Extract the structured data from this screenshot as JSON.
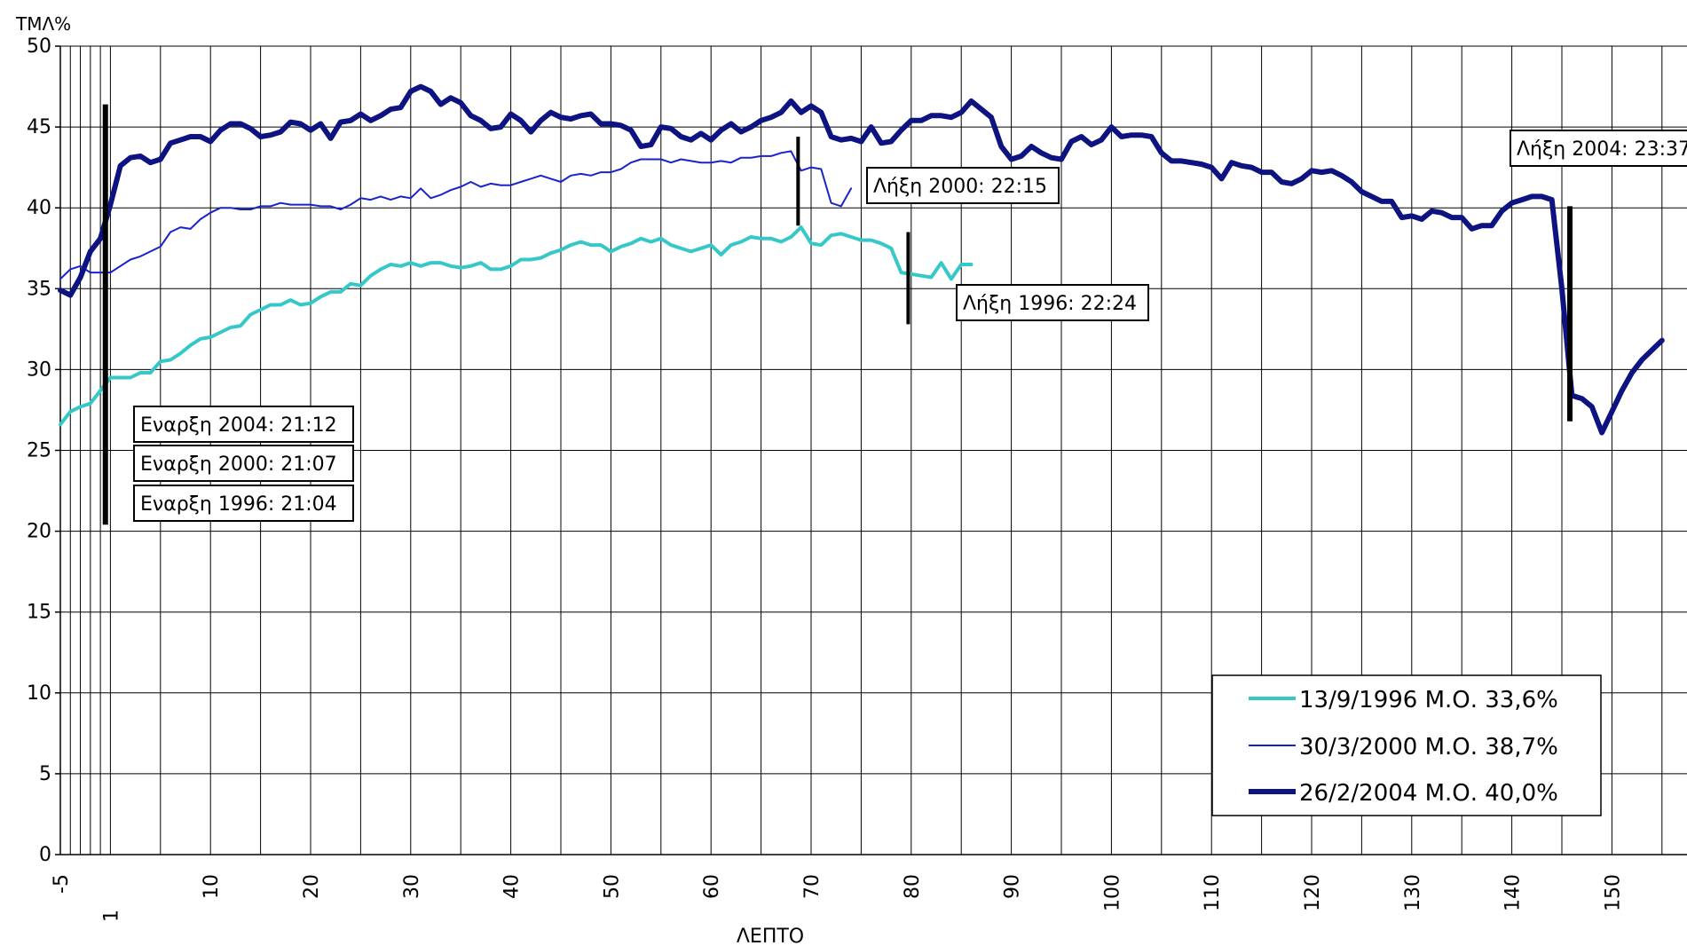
{
  "chart_data": {
    "type": "line",
    "title": "",
    "ylabel": "ΤΜΛ%",
    "xlabel": "ΛΕΠΤΟ",
    "ylim": [
      0,
      50
    ],
    "yticks": [
      "0",
      "5",
      "10",
      "15",
      "20",
      "25",
      "30",
      "35",
      "40",
      "45",
      "50"
    ],
    "xticks": [
      "-5",
      "1",
      "10",
      "20",
      "30",
      "40",
      "50",
      "60",
      "70",
      "80",
      "90",
      "100",
      "110",
      "120",
      "130",
      "140",
      "150"
    ],
    "grid": true,
    "legend_position": "bottom-right",
    "series": [
      {
        "name": "13/9/1996 Μ.Ο. 33,6%",
        "color": "#36c8c8",
        "x": [
          -5,
          -4,
          -3,
          -2,
          0,
          1,
          2,
          3,
          4,
          5,
          6,
          7,
          8,
          9,
          10,
          11,
          12,
          13,
          14,
          15,
          16,
          17,
          18,
          19,
          20,
          21,
          22,
          23,
          24,
          25,
          26,
          27,
          28,
          29,
          30,
          31,
          32,
          33,
          34,
          35,
          36,
          37,
          38,
          39,
          40,
          41,
          42,
          43,
          44,
          45,
          46,
          47,
          48,
          49,
          50,
          51,
          52,
          53,
          54,
          55,
          56,
          57,
          58,
          59,
          60,
          61,
          62,
          63,
          64,
          65,
          66,
          67,
          68,
          69,
          70,
          71,
          72,
          73,
          74,
          75,
          76,
          77,
          78,
          79,
          80,
          81,
          82,
          83,
          84,
          85,
          86
        ],
        "values": [
          26.6,
          27.4,
          27.7,
          27.9,
          29.5,
          29.5,
          29.5,
          29.8,
          29.8,
          30.5,
          30.6,
          31.0,
          31.5,
          31.9,
          32.0,
          32.3,
          32.6,
          32.7,
          33.4,
          33.7,
          34.0,
          34.0,
          34.3,
          34.0,
          34.1,
          34.5,
          34.8,
          34.8,
          35.3,
          35.2,
          35.8,
          36.2,
          36.5,
          36.4,
          36.6,
          36.4,
          36.6,
          36.6,
          36.4,
          36.3,
          36.4,
          36.6,
          36.2,
          36.2,
          36.4,
          36.8,
          36.8,
          36.9,
          37.2,
          37.4,
          37.7,
          37.9,
          37.7,
          37.7,
          37.3,
          37.6,
          37.8,
          38.1,
          37.9,
          38.1,
          37.7,
          37.5,
          37.3,
          37.5,
          37.7,
          37.1,
          37.7,
          37.9,
          38.2,
          38.1,
          38.1,
          37.9,
          38.2,
          38.8,
          37.8,
          37.7,
          38.3,
          38.4,
          38.2,
          38.0,
          38.0,
          37.8,
          37.5,
          36.0,
          35.9,
          35.8,
          35.7,
          36.6,
          35.6,
          36.5,
          36.5
        ],
        "line_width": 4
      },
      {
        "name": "30/3/2000 Μ.Ο. 38,7%",
        "color": "#1a22cc",
        "x": [
          -5,
          -4,
          -3,
          -2,
          0,
          1,
          2,
          3,
          4,
          5,
          6,
          7,
          8,
          9,
          10,
          11,
          12,
          13,
          14,
          15,
          16,
          17,
          18,
          19,
          20,
          21,
          22,
          23,
          24,
          25,
          26,
          27,
          28,
          29,
          30,
          31,
          32,
          33,
          34,
          35,
          36,
          37,
          38,
          39,
          40,
          41,
          42,
          43,
          44,
          45,
          46,
          47,
          48,
          49,
          50,
          51,
          52,
          53,
          54,
          55,
          56,
          57,
          58,
          59,
          60,
          61,
          62,
          63,
          64,
          65,
          66,
          67,
          68,
          69,
          70,
          71,
          72,
          73,
          74
        ],
        "values": [
          35.6,
          36.2,
          36.4,
          36.0,
          36.0,
          36.4,
          36.8,
          37.0,
          37.3,
          37.6,
          38.5,
          38.8,
          38.7,
          39.3,
          39.7,
          40.0,
          40.0,
          39.9,
          39.9,
          40.1,
          40.1,
          40.3,
          40.2,
          40.2,
          40.2,
          40.1,
          40.1,
          39.9,
          40.2,
          40.6,
          40.5,
          40.7,
          40.5,
          40.7,
          40.6,
          41.2,
          40.6,
          40.8,
          41.1,
          41.3,
          41.6,
          41.3,
          41.5,
          41.4,
          41.4,
          41.6,
          41.8,
          42.0,
          41.8,
          41.6,
          42.0,
          42.1,
          42.0,
          42.2,
          42.2,
          42.4,
          42.8,
          43.0,
          43.0,
          43.0,
          42.8,
          43.0,
          42.9,
          42.8,
          42.8,
          42.9,
          42.8,
          43.1,
          43.1,
          43.2,
          43.2,
          43.4,
          43.5,
          42.3,
          42.5,
          42.4,
          40.3,
          40.1,
          41.2
        ],
        "line_width": 2
      },
      {
        "name": "26/2/2004 Μ.Ο. 40,0%",
        "color": "#0d1380",
        "x": [
          -5,
          -4,
          -3,
          -2,
          -1,
          0,
          1,
          2,
          3,
          4,
          5,
          6,
          7,
          8,
          9,
          10,
          11,
          12,
          13,
          14,
          15,
          16,
          17,
          18,
          19,
          20,
          21,
          22,
          23,
          24,
          25,
          26,
          27,
          28,
          29,
          30,
          31,
          32,
          33,
          34,
          35,
          36,
          37,
          38,
          39,
          40,
          41,
          42,
          43,
          44,
          45,
          46,
          47,
          48,
          49,
          50,
          51,
          52,
          53,
          54,
          55,
          56,
          57,
          58,
          59,
          60,
          61,
          62,
          63,
          64,
          65,
          66,
          67,
          68,
          69,
          70,
          71,
          72,
          73,
          74,
          75,
          76,
          77,
          78,
          79,
          80,
          81,
          82,
          83,
          84,
          85,
          86,
          87,
          88,
          89,
          90,
          91,
          92,
          93,
          94,
          95,
          96,
          97,
          98,
          99,
          100,
          101,
          102,
          103,
          104,
          105,
          106,
          107,
          108,
          109,
          110,
          111,
          112,
          113,
          114,
          115,
          116,
          117,
          118,
          119,
          120,
          121,
          122,
          123,
          124,
          125,
          126,
          127,
          128,
          129,
          130,
          131,
          132,
          133,
          134,
          135,
          136,
          137,
          138,
          139,
          140,
          141,
          142,
          143,
          144,
          145,
          146,
          147,
          148,
          149,
          150,
          151,
          152,
          153,
          154,
          155
        ],
        "values": [
          34.9,
          34.6,
          35.7,
          37.3,
          38.1,
          40.2,
          42.6,
          43.1,
          43.2,
          42.8,
          43.0,
          44.0,
          44.2,
          44.4,
          44.4,
          44.1,
          44.8,
          45.2,
          45.2,
          44.9,
          44.4,
          44.5,
          44.7,
          45.3,
          45.2,
          44.8,
          45.2,
          44.3,
          45.3,
          45.4,
          45.8,
          45.4,
          45.7,
          46.1,
          46.2,
          47.2,
          47.5,
          47.2,
          46.4,
          46.8,
          46.5,
          45.7,
          45.4,
          44.9,
          45.0,
          45.8,
          45.4,
          44.7,
          45.4,
          45.9,
          45.6,
          45.5,
          45.7,
          45.8,
          45.2,
          45.2,
          45.1,
          44.8,
          43.8,
          43.9,
          45.0,
          44.9,
          44.4,
          44.2,
          44.6,
          44.2,
          44.8,
          45.2,
          44.7,
          45.0,
          45.4,
          45.6,
          45.9,
          46.6,
          45.9,
          46.3,
          45.9,
          44.4,
          44.2,
          44.3,
          44.1,
          45.0,
          44.0,
          44.1,
          44.8,
          45.4,
          45.4,
          45.7,
          45.7,
          45.6,
          45.9,
          46.6,
          46.1,
          45.6,
          43.8,
          43.0,
          43.2,
          43.8,
          43.4,
          43.1,
          43.0,
          44.1,
          44.4,
          43.9,
          44.2,
          45.0,
          44.4,
          44.5,
          44.5,
          44.4,
          43.4,
          42.9,
          42.9,
          42.8,
          42.7,
          42.5,
          41.8,
          42.8,
          42.6,
          42.5,
          42.2,
          42.2,
          41.6,
          41.5,
          41.8,
          42.3,
          42.2,
          42.3,
          42.0,
          41.6,
          41.0,
          40.7,
          40.4,
          40.4,
          39.4,
          39.5,
          39.3,
          39.8,
          39.7,
          39.4,
          39.4,
          38.7,
          38.9,
          38.9,
          39.8,
          40.3,
          40.5,
          40.7,
          40.7,
          40.5,
          35.0,
          28.4,
          28.2,
          27.7,
          26.1,
          27.4,
          28.7,
          29.8,
          30.6,
          31.2,
          31.8
        ],
        "line_width": 6
      }
    ],
    "markers": [
      {
        "x": -0.5,
        "y_from": 46.4,
        "y_to": 20.4,
        "width": 6
      },
      {
        "x": 68.7,
        "y_from": 44.4,
        "y_to": 38.9,
        "width": 4
      },
      {
        "x": 79.7,
        "y_from": 38.5,
        "y_to": 32.8,
        "width": 4
      },
      {
        "x": 145.8,
        "y_from": 40.1,
        "y_to": 26.8,
        "width": 6
      }
    ],
    "annotations": [
      {
        "text": "Εναρξη 2004: 21:12"
      },
      {
        "text": "Εναρξη 2000: 21:07"
      },
      {
        "text": "Εναρξη 1996: 21:04"
      },
      {
        "text": "Λήξη 2000: 22:15"
      },
      {
        "text": "Λήξη 1996: 22:24"
      },
      {
        "text": "Λήξη 2004: 23:37"
      }
    ]
  }
}
